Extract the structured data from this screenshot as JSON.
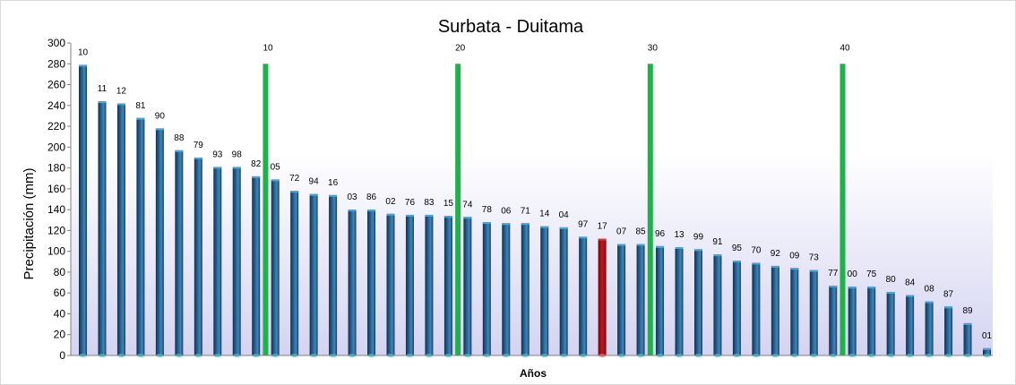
{
  "chart_data": {
    "type": "bar",
    "title": "Surbata - Duitama",
    "xlabel": "Años",
    "ylabel": "Precipitación (mm)",
    "ylim": [
      0,
      300
    ],
    "yticks": [
      0,
      20,
      40,
      60,
      80,
      100,
      120,
      140,
      160,
      180,
      200,
      220,
      240,
      260,
      280,
      300
    ],
    "grid": false,
    "categories": [
      "10",
      "11",
      "12",
      "81",
      "90",
      "88",
      "79",
      "93",
      "98",
      "82",
      "05",
      "72",
      "94",
      "16",
      "03",
      "86",
      "02",
      "76",
      "83",
      "15",
      "74",
      "78",
      "06",
      "71",
      "14",
      "04",
      "97",
      "17",
      "07",
      "85",
      "96",
      "13",
      "99",
      "91",
      "95",
      "70",
      "92",
      "09",
      "73",
      "77",
      "00",
      "75",
      "80",
      "84",
      "08",
      "87",
      "89",
      "01"
    ],
    "values": [
      279,
      244,
      242,
      228,
      218,
      197,
      190,
      181,
      181,
      172,
      169,
      158,
      155,
      154,
      140,
      140,
      136,
      135,
      135,
      134,
      133,
      128,
      127,
      127,
      124,
      123,
      114,
      112,
      107,
      107,
      105,
      104,
      102,
      97,
      91,
      89,
      86,
      84,
      82,
      67,
      66,
      66,
      61,
      58,
      52,
      47,
      31,
      7
    ],
    "highlight_color": "#b0141c",
    "highlight_index": 27,
    "bar_color": "#1f4e79",
    "markers": {
      "color": "#1fb24a",
      "height_value": 280,
      "positions": [
        10,
        20,
        30,
        40
      ],
      "labels": [
        "10",
        "20",
        "30",
        "40"
      ]
    }
  }
}
